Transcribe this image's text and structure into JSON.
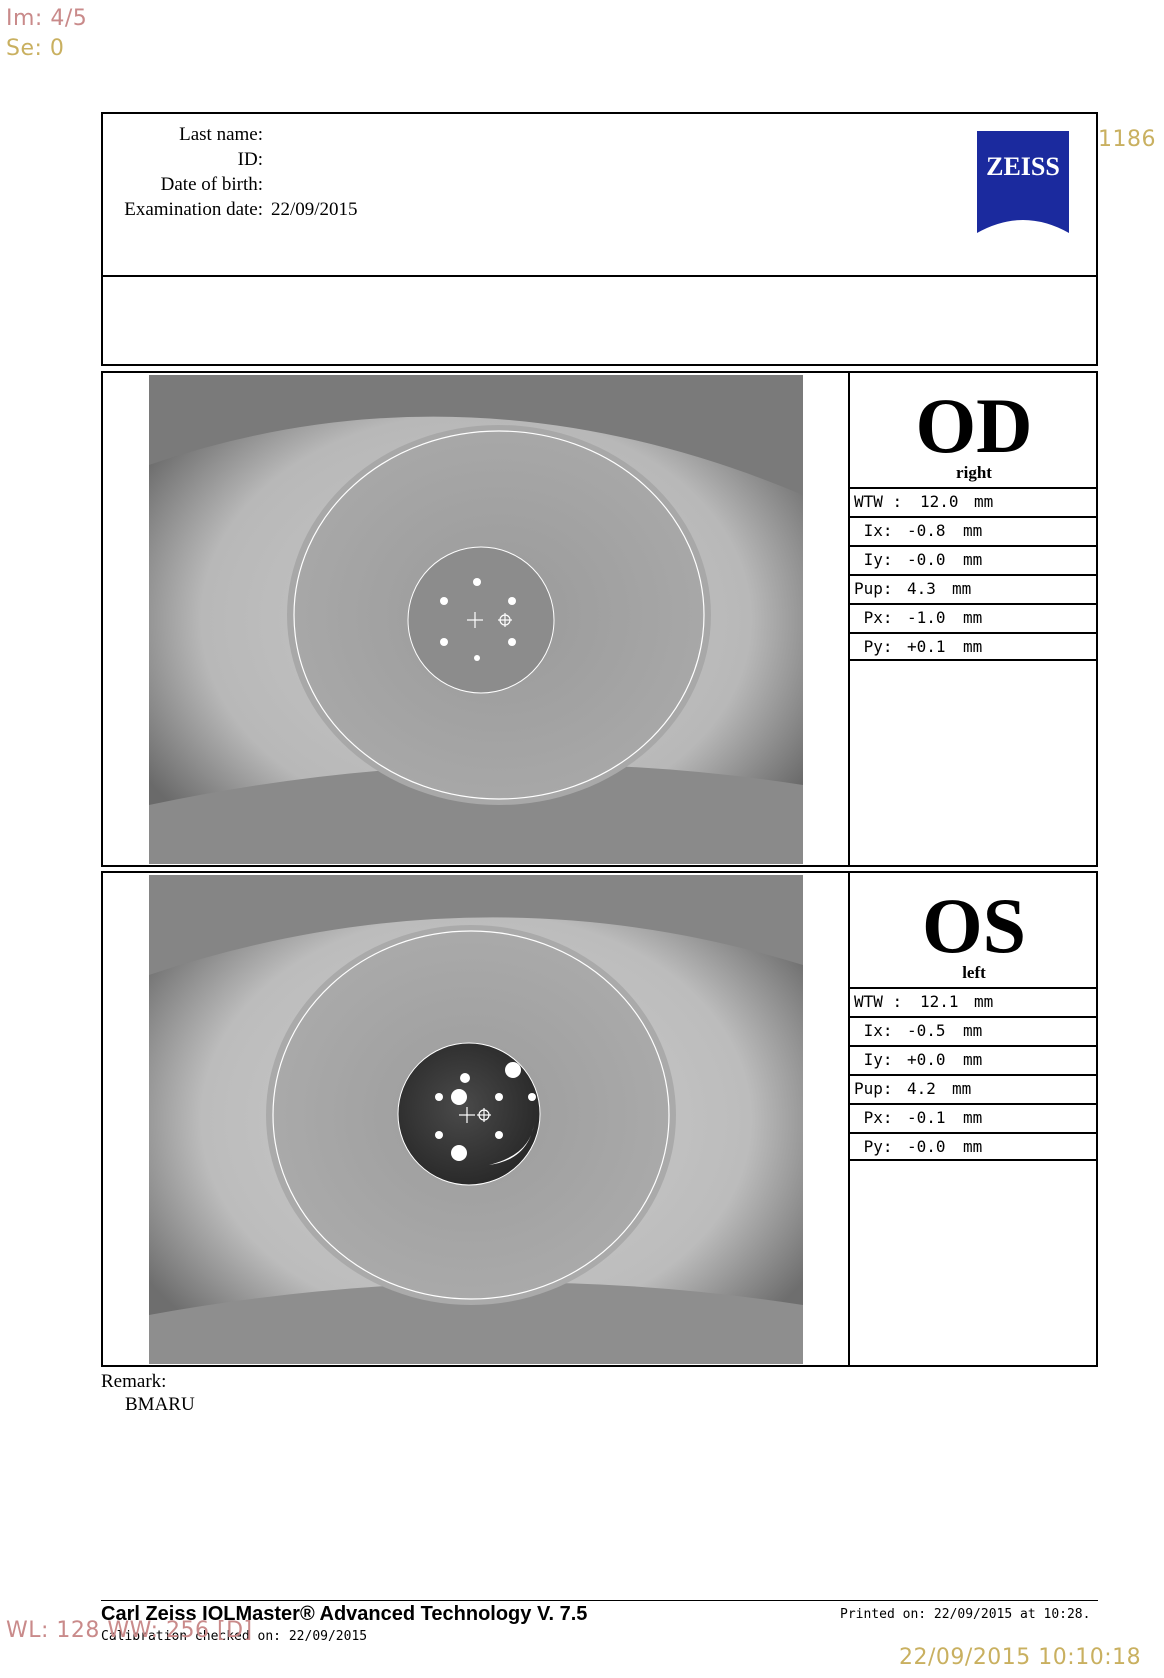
{
  "overlay": {
    "image_index": "Im: 4/5",
    "series": "Se: 0",
    "number_right": "1186",
    "window_level": "WL: 128 WW: 256 [D]",
    "datetime": "22/09/2015 10:10:18"
  },
  "patient": {
    "last_name_label": "Last name:",
    "id_label": "ID:",
    "dob_label": "Date of birth:",
    "exam_date_label": "Examination date:",
    "exam_date": "22/09/2015"
  },
  "logo": {
    "text": "ZEISS",
    "color": "#1b2a9e"
  },
  "eyes": [
    {
      "code": "OD",
      "side": "right",
      "measurements": [
        {
          "label": "WTW :",
          "value": "12.0",
          "unit": "mm"
        },
        {
          "label": " Ix:",
          "value": "-0.8",
          "unit": "mm"
        },
        {
          "label": " Iy:",
          "value": "-0.0",
          "unit": "mm"
        },
        {
          "label": "Pup:",
          "value": "4.3",
          "unit": "mm"
        },
        {
          "label": " Px:",
          "value": "-1.0",
          "unit": "mm"
        },
        {
          "label": " Py:",
          "value": "+0.1",
          "unit": "mm"
        }
      ]
    },
    {
      "code": "OS",
      "side": "left",
      "measurements": [
        {
          "label": "WTW :",
          "value": "12.1",
          "unit": "mm"
        },
        {
          "label": " Ix:",
          "value": "-0.5",
          "unit": "mm"
        },
        {
          "label": " Iy:",
          "value": "+0.0",
          "unit": "mm"
        },
        {
          "label": "Pup:",
          "value": "4.2",
          "unit": "mm"
        },
        {
          "label": " Px:",
          "value": "-0.1",
          "unit": "mm"
        },
        {
          "label": " Py:",
          "value": "-0.0",
          "unit": "mm"
        }
      ]
    }
  ],
  "remark": {
    "label": "Remark:",
    "text": "BMARU"
  },
  "footer": {
    "title": "Carl Zeiss IOLMaster® Advanced Technology V. 7.5",
    "printed": "Printed on: 22/09/2015 at 10:28.",
    "calibration": "Calibration checked on: 22/09/2015"
  }
}
